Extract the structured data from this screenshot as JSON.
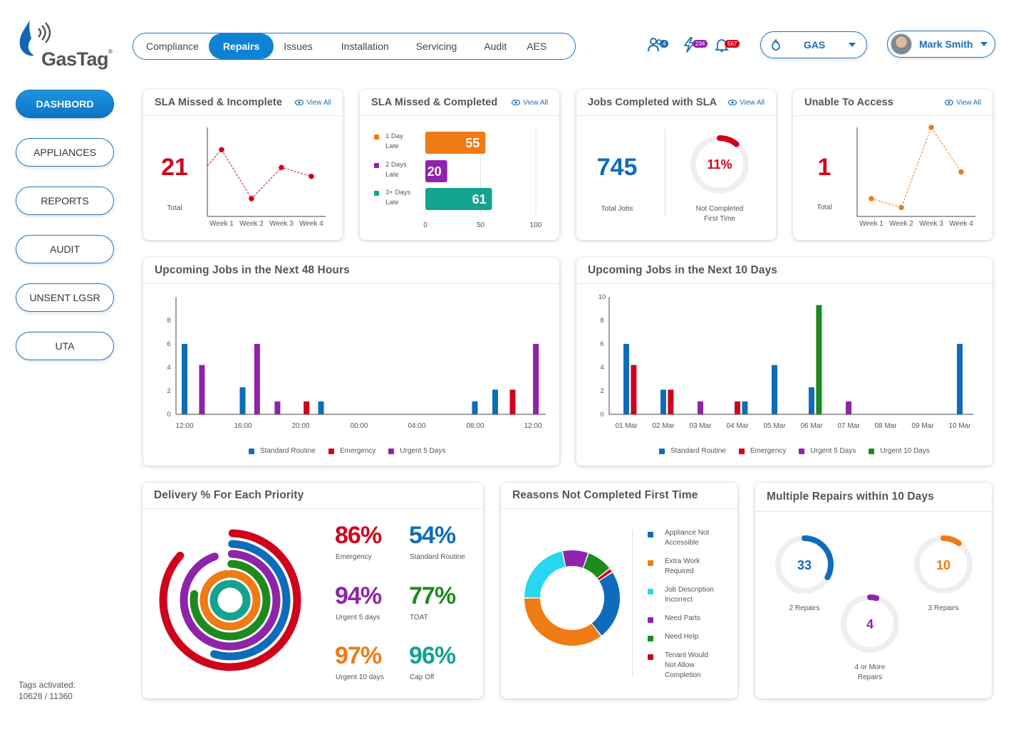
{
  "brand": {
    "name": "GasTag",
    "mark": "®"
  },
  "nav": {
    "tabs": [
      "Compliance",
      "Repairs",
      "Issues",
      "Installation",
      "Servicing",
      "Audit",
      "AES"
    ],
    "active": 1
  },
  "header": {
    "team_count": "4",
    "alerts_count": "234",
    "notifications_count": "567",
    "fuel": "GAS",
    "user": "Mark Smith"
  },
  "sidebar": {
    "items": [
      "DASHBORD",
      "APPLIANCES",
      "REPORTS",
      "AUDIT",
      "UNSENT LGSR",
      "UTA"
    ]
  },
  "footer": {
    "tags_label": "Tags activated:",
    "tags_value": "10628 / 11360"
  },
  "colors": {
    "blue": "#0e6cba",
    "red": "#d0021b",
    "purple": "#8e24aa",
    "orange": "#f07a14",
    "teal": "#13a38f",
    "green": "#1e8a1e",
    "cyan": "#29d6ef"
  },
  "cards": {
    "sla_missed_incomplete": {
      "title": "SLA Missed & Incomplete",
      "view_all": "View All",
      "value": "21",
      "value_label": "Total"
    },
    "sla_missed_completed": {
      "title": "SLA Missed & Completed",
      "view_all": "View All"
    },
    "jobs_completed_sla": {
      "title": "Jobs Completed with SLA",
      "view_all": "View All",
      "value": "745",
      "value_label": "Total Jobs",
      "ring_value": "11%",
      "ring_label_1": "Not Completed",
      "ring_label_2": "First Time"
    },
    "unable_to_access": {
      "title": "Unable To Access",
      "view_all": "View All",
      "value": "1",
      "value_label": "Total"
    },
    "upcoming_48": {
      "title": "Upcoming Jobs in the Next 48 Hours"
    },
    "upcoming_10": {
      "title": "Upcoming Jobs in the Next 10 Days"
    },
    "delivery": {
      "title": "Delivery % For Each Priority",
      "items": [
        {
          "value": "86%",
          "label": "Emergency",
          "color": "#d0021b"
        },
        {
          "value": "54%",
          "label": "Standard Routine",
          "color": "#0e6cba"
        },
        {
          "value": "94%",
          "label": "Urgent 5 days",
          "color": "#8e24aa"
        },
        {
          "value": "77%",
          "label": "TOAT",
          "color": "#1e8a1e"
        },
        {
          "value": "97%",
          "label": "Urgent 10 days",
          "color": "#f07a14"
        },
        {
          "value": "96%",
          "label": "Cap Off",
          "color": "#13a38f"
        }
      ]
    },
    "reasons": {
      "title": "Reasons Not Completed First Time",
      "legend": [
        {
          "lines": [
            "Appliance Not",
            "Accessible"
          ],
          "color": "#0e6cba"
        },
        {
          "lines": [
            "Extra Work",
            "Required"
          ],
          "color": "#f07a14"
        },
        {
          "lines": [
            "Job Description",
            "Incorrect"
          ],
          "color": "#29d6ef"
        },
        {
          "lines": [
            "Need Parts"
          ],
          "color": "#8e24aa"
        },
        {
          "lines": [
            "Need Help"
          ],
          "color": "#1e8a1e"
        },
        {
          "lines": [
            "Tenant Would",
            "Not Allow",
            "Completion"
          ],
          "color": "#d0021b"
        }
      ]
    },
    "multiple_repairs": {
      "title": "Multiple Repairs within 10 Days",
      "items": [
        {
          "value": "33",
          "label": "2 Repairs",
          "color": "#0e6cba",
          "fraction": 0.33
        },
        {
          "value": "10",
          "label": "3 Repairs",
          "color": "#f07a14",
          "fraction": 0.1
        },
        {
          "value": "4",
          "label": "4 or More Repairs",
          "color": "#8e24aa",
          "fraction": 0.04
        }
      ]
    }
  },
  "chart_data": [
    {
      "id": "sla_incomplete",
      "type": "line",
      "x": [
        "Week 1",
        "Week 2",
        "Week 3",
        "Week 4"
      ],
      "series": [
        {
          "values": [
            7.5,
            2,
            5.5,
            4.5
          ],
          "color": "#d0021b"
        }
      ],
      "note_first_point_partial": true
    },
    {
      "id": "sla_completed",
      "type": "bar",
      "orientation": "horizontal",
      "categories": [
        "1 Day Late",
        "2 Days Late",
        "3+ Days Late"
      ],
      "values": [
        55,
        20,
        61
      ],
      "colors": [
        "#f07a14",
        "#8e24aa",
        "#13a38f"
      ],
      "xticks": [
        "0",
        "50",
        "100"
      ],
      "xlim": [
        0,
        100
      ]
    },
    {
      "id": "unable_access",
      "type": "line",
      "x": [
        "Week 1",
        "Week 2",
        "Week 3",
        "Week 4"
      ],
      "series": [
        {
          "values": [
            2,
            1,
            10,
            5
          ],
          "color": "#f07a14"
        }
      ]
    },
    {
      "id": "upcoming_48",
      "type": "bar",
      "x": [
        "12:00",
        "16:00",
        "20:00",
        "00:00",
        "04:00",
        "08:00",
        "12:00"
      ],
      "ylim": [
        0,
        10
      ],
      "yticks": [
        0,
        2,
        4,
        6,
        8
      ],
      "series": [
        {
          "name": "Standard Routine",
          "color": "#0e6cba",
          "points": [
            [
              0.0,
              6
            ],
            [
              1.0,
              2.3
            ],
            [
              2.35,
              1.1
            ],
            [
              5.0,
              1.1
            ],
            [
              5.35,
              2.1
            ]
          ]
        },
        {
          "name": "Emergency",
          "color": "#d0021b",
          "points": [
            [
              2.1,
              1.1
            ],
            [
              5.65,
              2.1
            ]
          ]
        },
        {
          "name": "Urgent 5 Days",
          "color": "#8e24aa",
          "points": [
            [
              0.3,
              4.2
            ],
            [
              1.25,
              6
            ],
            [
              1.6,
              1.1
            ],
            [
              6.05,
              6
            ]
          ]
        }
      ]
    },
    {
      "id": "upcoming_10",
      "type": "bar",
      "x": [
        "01 Mar",
        "02 Mar",
        "03 Mar",
        "04 Mar",
        "05 Mar",
        "06 Mar",
        "07 Mar",
        "08 Mar",
        "09 Mar",
        "10 Mar"
      ],
      "ylim": [
        0,
        10
      ],
      "yticks": [
        0,
        2,
        4,
        6,
        8,
        10
      ],
      "series": [
        {
          "name": "Standard Routine",
          "color": "#0e6cba",
          "points": [
            [
              0,
              6
            ],
            [
              1,
              2.1
            ],
            [
              3.2,
              1.1
            ],
            [
              4,
              4.2
            ],
            [
              5,
              2.3
            ],
            [
              9,
              6
            ]
          ]
        },
        {
          "name": "Emergency",
          "color": "#d0021b",
          "points": [
            [
              0.2,
              4.2
            ],
            [
              1.2,
              2.1
            ],
            [
              3,
              1.1
            ]
          ]
        },
        {
          "name": "Urgent 5 Days",
          "color": "#8e24aa",
          "points": [
            [
              2,
              1.1
            ],
            [
              6,
              1.1
            ]
          ]
        },
        {
          "name": "Urgent 10 Days",
          "color": "#1e8a1e",
          "points": [
            [
              5.2,
              9.3
            ]
          ]
        }
      ]
    },
    {
      "id": "delivery_rings",
      "type": "radial",
      "values": [
        86,
        54,
        94,
        77,
        97,
        96
      ],
      "colors": [
        "#d0021b",
        "#0e6cba",
        "#8e24aa",
        "#1e8a1e",
        "#f07a14",
        "#13a38f"
      ]
    },
    {
      "id": "reasons_donut",
      "type": "pie",
      "values": [
        24,
        36,
        22,
        9,
        9,
        1.5
      ],
      "colors": [
        "#0e6cba",
        "#f07a14",
        "#29d6ef",
        "#8e24aa",
        "#1e8a1e",
        "#d0021b"
      ]
    }
  ]
}
